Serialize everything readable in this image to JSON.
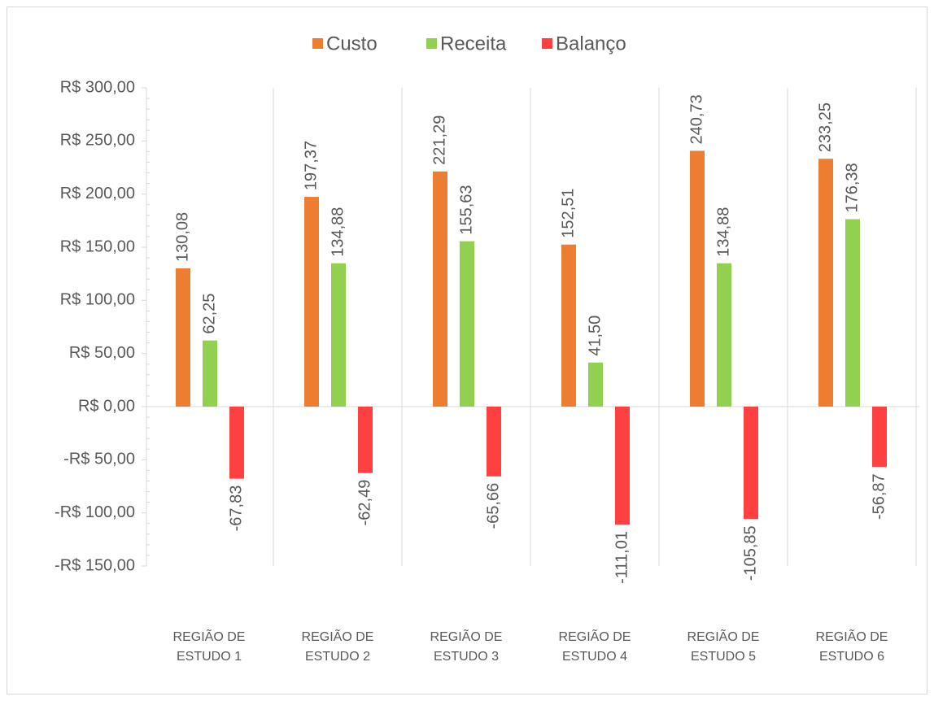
{
  "chart_data": {
    "type": "bar",
    "categories": [
      "REGIÃO DE ESTUDO 1",
      "REGIÃO DE ESTUDO 2",
      "REGIÃO DE ESTUDO 3",
      "REGIÃO DE ESTUDO 4",
      "REGIÃO DE ESTUDO 5",
      "REGIÃO DE ESTUDO 6"
    ],
    "series": [
      {
        "name": "Custo",
        "color": "#ED7D31",
        "values": [
          130.08,
          197.37,
          221.29,
          152.51,
          240.73,
          233.25
        ],
        "value_labels": [
          "130,08",
          "197,37",
          "221,29",
          "152,51",
          "240,73",
          "233,25"
        ]
      },
      {
        "name": "Receita",
        "color": "#92D050",
        "values": [
          62.25,
          134.88,
          155.63,
          41.5,
          134.88,
          176.38
        ],
        "value_labels": [
          "62,25",
          "134,88",
          "155,63",
          "41,50",
          "134,88",
          "176,38"
        ]
      },
      {
        "name": "Balanço",
        "color": "#FF4040",
        "values": [
          -67.83,
          -62.49,
          -65.66,
          -111.01,
          -105.85,
          -56.87
        ],
        "value_labels": [
          "-67,83",
          "-62,49",
          "-65,66",
          "-111,01",
          "-105,85",
          "-56,87"
        ]
      }
    ],
    "ylim": [
      -150,
      300
    ],
    "yticks": [
      {
        "value": -150,
        "label": "-R$ 150,00"
      },
      {
        "value": -100,
        "label": "-R$ 100,00"
      },
      {
        "value": -50,
        "label": "-R$ 50,00"
      },
      {
        "value": 0,
        "label": "R$ 0,00"
      },
      {
        "value": 50,
        "label": "R$ 50,00"
      },
      {
        "value": 100,
        "label": "R$ 100,00"
      },
      {
        "value": 150,
        "label": "R$ 150,00"
      },
      {
        "value": 200,
        "label": "R$ 200,00"
      },
      {
        "value": 250,
        "label": "R$ 250,00"
      },
      {
        "value": 300,
        "label": "R$ 300,00"
      }
    ],
    "legend": "top"
  }
}
